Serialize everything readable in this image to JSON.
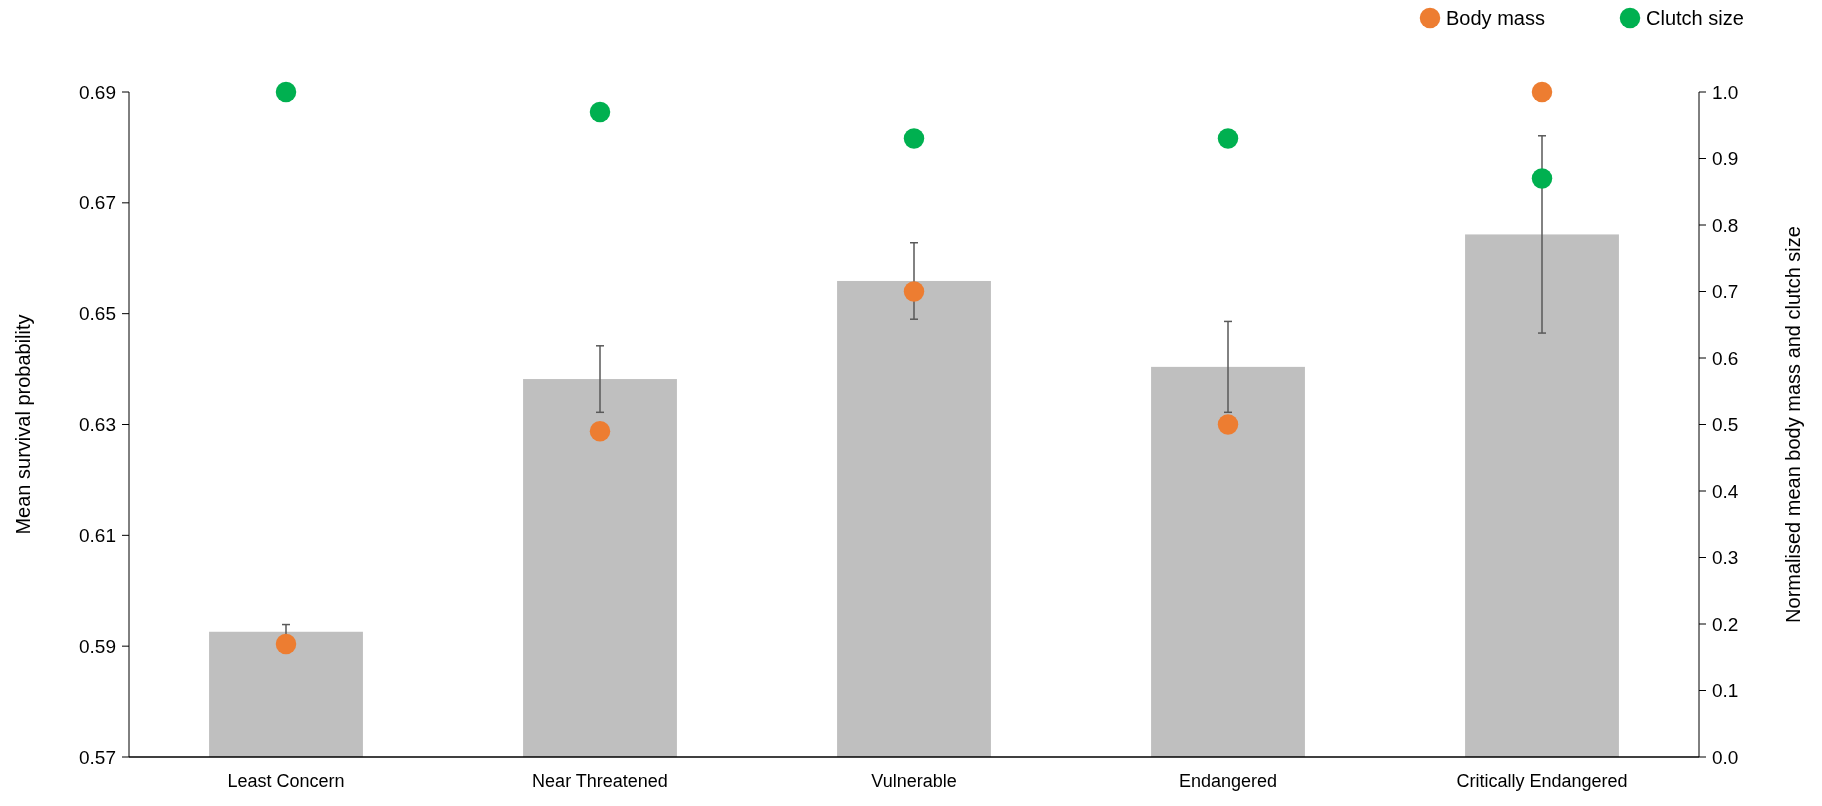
{
  "chart_data": {
    "type": "bar",
    "categories": [
      "Least Concern",
      "Near Threatened",
      "Vulnerable",
      "Endangered",
      "Critically Endangered"
    ],
    "ylabel": "Mean survival probability",
    "y2label": "Normalised mean body mass and clutch size",
    "ylim": [
      0.57,
      0.69
    ],
    "yticks": [
      0.57,
      0.59,
      0.61,
      0.63,
      0.65,
      0.67,
      0.69
    ],
    "y2lim": [
      0,
      1
    ],
    "y2ticks": [
      {
        "value": 0,
        "label": "0.0"
      },
      0.1,
      0.2,
      0.3,
      0.4,
      0.5,
      0.6,
      0.7,
      0.8,
      0.9,
      {
        "value": 1,
        "label": "1.0"
      }
    ],
    "legend": "top right",
    "grid": false,
    "marker": "circle",
    "series": [
      {
        "color": "#bfbfbf",
        "values": [
          0.5926,
          0.6382,
          0.6559,
          0.6404,
          0.6643
        ],
        "errors": [
          0.0013,
          0.006,
          0.0069,
          0.0082,
          0.0178
        ]
      },
      {
        "type": "scatter",
        "name": "Body mass",
        "color": "#ed7d31",
        "axis": "y2",
        "values": [
          0.17,
          0.49,
          0.7,
          0.5,
          1.0
        ]
      },
      {
        "type": "scatter",
        "name": "Clutch size",
        "color": "#00b050",
        "axis": "y2",
        "values": [
          1.0,
          0.97,
          0.93,
          0.93,
          0.87
        ]
      }
    ]
  }
}
